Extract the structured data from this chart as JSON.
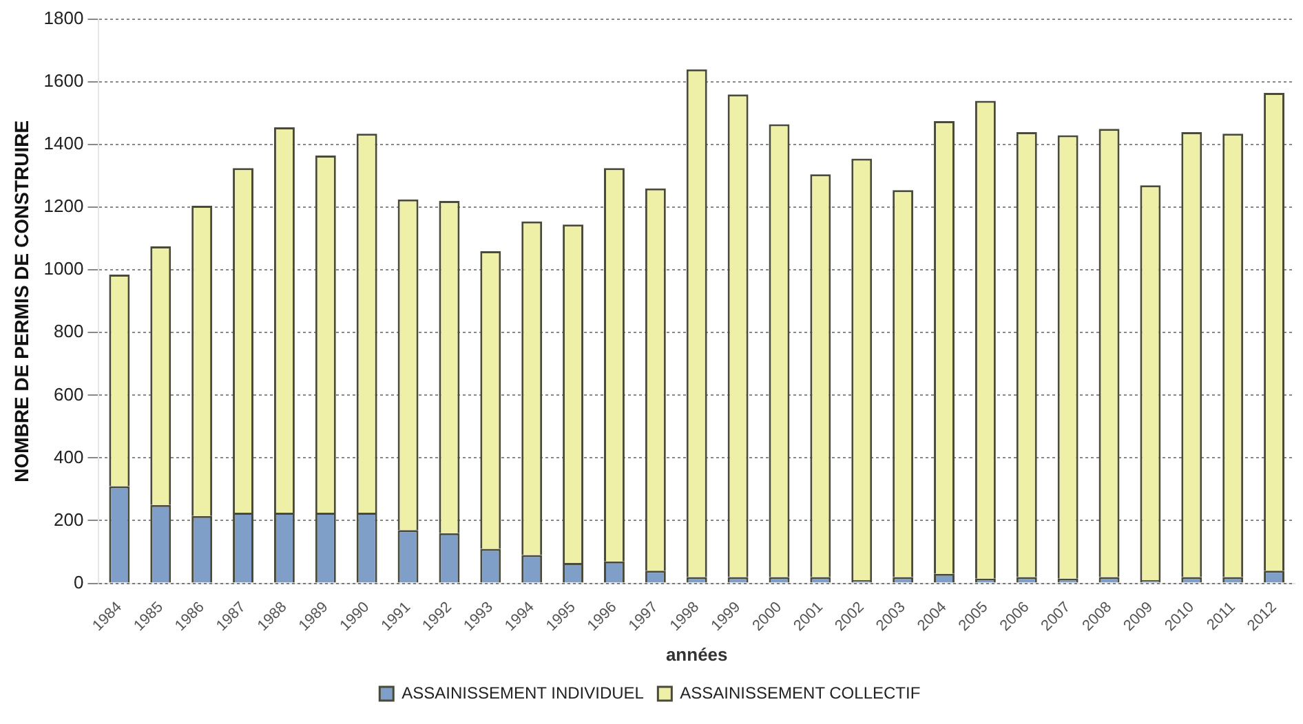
{
  "chart_data": {
    "type": "bar",
    "stacked": true,
    "xlabel": "années",
    "ylabel": "NOMBRE DE PERMIS DE CONSTRUIRE",
    "categories": [
      "1984",
      "1985",
      "1986",
      "1987",
      "1988",
      "1989",
      "1990",
      "1991",
      "1992",
      "1993",
      "1994",
      "1995",
      "1996",
      "1997",
      "1998",
      "1999",
      "2000",
      "2001",
      "2002",
      "2003",
      "2004",
      "2005",
      "2006",
      "2007",
      "2008",
      "2009",
      "2010",
      "2011",
      "2012"
    ],
    "series": [
      {
        "name": "ASSAINISSEMENT INDIVIDUEL",
        "color": "#7f9fc8",
        "values": [
          310,
          250,
          215,
          225,
          225,
          225,
          225,
          170,
          160,
          110,
          90,
          65,
          70,
          40,
          20,
          20,
          20,
          20,
          10,
          20,
          30,
          15,
          20,
          15,
          20,
          10,
          20,
          20,
          40
        ]
      },
      {
        "name": "ASSAINISSEMENT COLLECTIF",
        "color": "#eef0a8",
        "values": [
          675,
          825,
          990,
          1100,
          1230,
          1140,
          1210,
          1055,
          1060,
          950,
          1065,
          1080,
          1255,
          1220,
          1620,
          1540,
          1445,
          1285,
          1345,
          1235,
          1445,
          1525,
          1420,
          1415,
          1430,
          1260,
          1420,
          1415,
          1525
        ]
      }
    ],
    "ylim": [
      0,
      1800
    ],
    "yticks": [
      0,
      200,
      400,
      600,
      800,
      1000,
      1200,
      1400,
      1600,
      1800
    ],
    "grid": "y",
    "legend": "bottom"
  }
}
